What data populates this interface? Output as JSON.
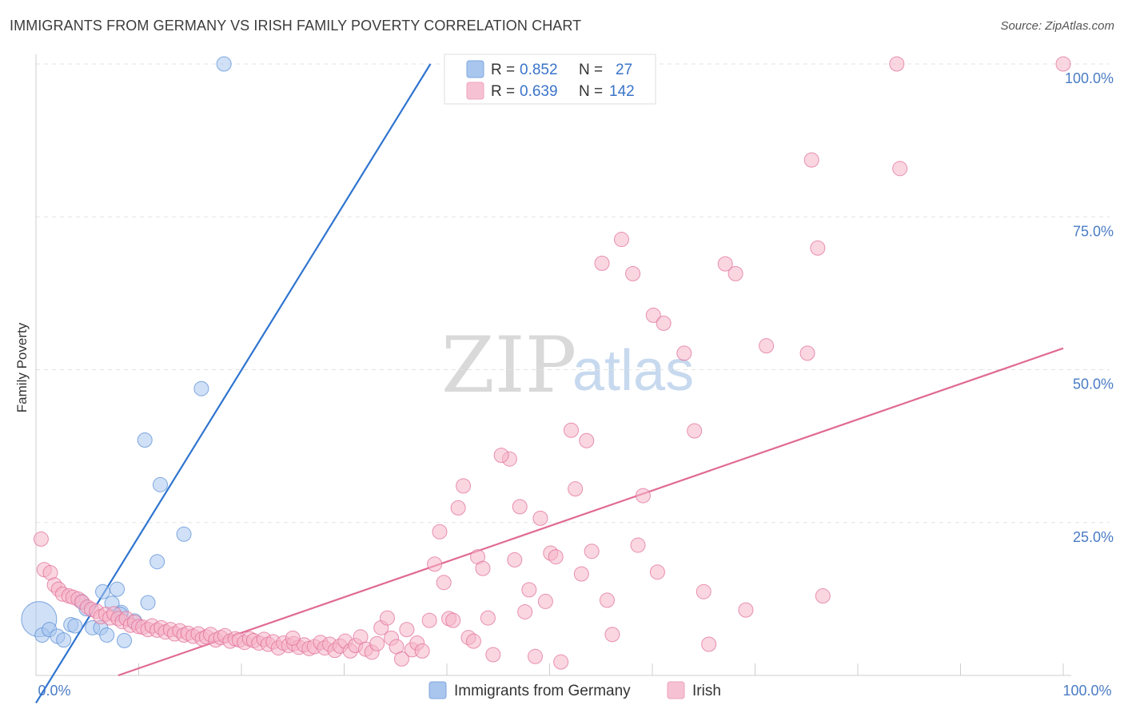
{
  "header": {
    "title": "IMMIGRANTS FROM GERMANY VS IRISH FAMILY POVERTY CORRELATION CHART",
    "source": "Source: ZipAtlas.com"
  },
  "watermark": {
    "zip": "ZIP",
    "atlas": "atlas"
  },
  "legend": {
    "rows": [
      {
        "r_label": "R =",
        "r_value": "0.852",
        "n_label": "N =",
        "n_value": "27",
        "color": "#a9c6ef"
      },
      {
        "r_label": "R =",
        "r_value": "0.639",
        "n_label": "N =",
        "n_value": "142",
        "color": "#f6b5c9"
      }
    ]
  },
  "bottom_legend": [
    {
      "label": "Immigrants from Germany",
      "color": "#a9c6ef"
    },
    {
      "label": "Irish",
      "color": "#f6b5c9"
    }
  ],
  "chart_data": {
    "type": "scatter",
    "ylabel": "Family Poverty",
    "xlim": [
      0,
      100
    ],
    "ylim": [
      0,
      100
    ],
    "x_tick_labels": [
      "0.0%",
      "100.0%"
    ],
    "y_tick_labels": [
      {
        "value": 100,
        "label": "100.0%"
      },
      {
        "value": 75,
        "label": "75.0%"
      },
      {
        "value": 50,
        "label": "50.0%"
      },
      {
        "value": 25,
        "label": "25.0%"
      }
    ],
    "grid": true,
    "series": [
      {
        "name": "Immigrants from Germany",
        "color": "#5b8fd6",
        "fill": "#a9c6ef",
        "points": [
          [
            0.3,
            9.2,
            22
          ],
          [
            0.6,
            6.6,
            9
          ],
          [
            1.3,
            7.5,
            9
          ],
          [
            2.1,
            6.4,
            9
          ],
          [
            2.7,
            5.8,
            9
          ],
          [
            3.4,
            8.3,
            9
          ],
          [
            3.8,
            8.1,
            9
          ],
          [
            4.4,
            12.1,
            9
          ],
          [
            4.9,
            10.9,
            9
          ],
          [
            5.5,
            7.8,
            9
          ],
          [
            6.3,
            7.8,
            9
          ],
          [
            6.5,
            13.7,
            9
          ],
          [
            6.9,
            6.6,
            9
          ],
          [
            7.4,
            11.8,
            9
          ],
          [
            7.9,
            14.1,
            9
          ],
          [
            8.3,
            10.3,
            9
          ],
          [
            8.6,
            5.7,
            9
          ],
          [
            9.6,
            8.9,
            9
          ],
          [
            10.6,
            38.5,
            9
          ],
          [
            11.8,
            18.6,
            9
          ],
          [
            12.1,
            31.2,
            9
          ],
          [
            10.9,
            11.9,
            9
          ],
          [
            14.4,
            23.1,
            9
          ],
          [
            16.1,
            46.9,
            9
          ],
          [
            18.3,
            100,
            9
          ],
          [
            40.5,
            100,
            9
          ],
          [
            8.2,
            10.0,
            9
          ]
        ],
        "trend": {
          "x0": 0,
          "y0": -4.5,
          "x1": 38.4,
          "y1": 100
        }
      },
      {
        "name": "Irish",
        "color": "#e0709a",
        "fill": "#f6b5c9",
        "points": [
          [
            0.5,
            22.3
          ],
          [
            0.8,
            17.3
          ],
          [
            1.4,
            16.8
          ],
          [
            1.8,
            14.8
          ],
          [
            2.2,
            14.1
          ],
          [
            2.6,
            13.3
          ],
          [
            3.2,
            13.0
          ],
          [
            3.6,
            12.8
          ],
          [
            4.1,
            12.5
          ],
          [
            4.5,
            12.0
          ],
          [
            5.0,
            11.2
          ],
          [
            5.4,
            10.8
          ],
          [
            5.9,
            10.5
          ],
          [
            6.3,
            9.6
          ],
          [
            6.8,
            10.0
          ],
          [
            7.2,
            9.4
          ],
          [
            7.6,
            10.1
          ],
          [
            8.0,
            9.3
          ],
          [
            8.4,
            8.8
          ],
          [
            8.8,
            9.3
          ],
          [
            9.2,
            8.2
          ],
          [
            9.6,
            8.7
          ],
          [
            10.0,
            8.0
          ],
          [
            10.4,
            7.9
          ],
          [
            10.9,
            7.5
          ],
          [
            11.3,
            8.1
          ],
          [
            11.8,
            7.4
          ],
          [
            12.2,
            7.8
          ],
          [
            12.6,
            7.1
          ],
          [
            13.1,
            7.5
          ],
          [
            13.5,
            6.8
          ],
          [
            14.0,
            7.3
          ],
          [
            14.4,
            6.6
          ],
          [
            14.8,
            6.9
          ],
          [
            15.3,
            6.4
          ],
          [
            15.8,
            6.8
          ],
          [
            16.2,
            6.0
          ],
          [
            16.6,
            6.3
          ],
          [
            17.0,
            6.7
          ],
          [
            17.5,
            5.8
          ],
          [
            18.0,
            6.2
          ],
          [
            18.4,
            6.5
          ],
          [
            18.9,
            5.6
          ],
          [
            19.4,
            6.0
          ],
          [
            19.8,
            5.8
          ],
          [
            20.3,
            5.4
          ],
          [
            20.8,
            6.0
          ],
          [
            21.2,
            5.7
          ],
          [
            21.7,
            5.3
          ],
          [
            22.2,
            5.9
          ],
          [
            22.6,
            5.1
          ],
          [
            23.1,
            5.5
          ],
          [
            23.6,
            4.5
          ],
          [
            24.1,
            5.3
          ],
          [
            24.6,
            4.9
          ],
          [
            25.1,
            5.2
          ],
          [
            25.6,
            4.6
          ],
          [
            26.1,
            5.0
          ],
          [
            26.6,
            4.4
          ],
          [
            27.1,
            4.7
          ],
          [
            27.7,
            5.4
          ],
          [
            28.1,
            4.5
          ],
          [
            28.6,
            5.1
          ],
          [
            29.1,
            4.1
          ],
          [
            29.6,
            4.8
          ],
          [
            30.1,
            5.6
          ],
          [
            30.6,
            4.0
          ],
          [
            31.1,
            4.9
          ],
          [
            31.6,
            6.3
          ],
          [
            32.1,
            4.3
          ],
          [
            32.7,
            3.8
          ],
          [
            33.2,
            5.2
          ],
          [
            33.6,
            7.8
          ],
          [
            34.2,
            9.4
          ],
          [
            34.6,
            6.1
          ],
          [
            35.1,
            4.7
          ],
          [
            35.6,
            2.7
          ],
          [
            36.1,
            7.5
          ],
          [
            36.6,
            4.2
          ],
          [
            37.1,
            5.3
          ],
          [
            37.6,
            4.0
          ],
          [
            38.3,
            9.0
          ],
          [
            38.8,
            18.2
          ],
          [
            39.3,
            23.5
          ],
          [
            39.7,
            15.2
          ],
          [
            40.2,
            9.3
          ],
          [
            40.6,
            9.0
          ],
          [
            41.1,
            27.4
          ],
          [
            41.6,
            31.0
          ],
          [
            42.1,
            6.2
          ],
          [
            42.6,
            5.6
          ],
          [
            43.0,
            19.4
          ],
          [
            43.5,
            17.5
          ],
          [
            44.0,
            9.4
          ],
          [
            44.5,
            3.4
          ],
          [
            46.1,
            35.4
          ],
          [
            46.6,
            18.9
          ],
          [
            47.1,
            27.6
          ],
          [
            47.6,
            10.4
          ],
          [
            48.0,
            14.0
          ],
          [
            48.6,
            3.1
          ],
          [
            49.1,
            25.7
          ],
          [
            49.6,
            12.1
          ],
          [
            50.1,
            20.0
          ],
          [
            50.6,
            19.4
          ],
          [
            51.1,
            2.2
          ],
          [
            52.1,
            40.1
          ],
          [
            52.5,
            30.5
          ],
          [
            53.1,
            16.6
          ],
          [
            53.6,
            38.4
          ],
          [
            54.1,
            20.3
          ],
          [
            55.1,
            67.4
          ],
          [
            55.6,
            12.3
          ],
          [
            56.1,
            6.7
          ],
          [
            58.1,
            65.7
          ],
          [
            58.6,
            21.3
          ],
          [
            59.1,
            29.4
          ],
          [
            60.1,
            58.9
          ],
          [
            60.5,
            16.9
          ],
          [
            61.1,
            57.6
          ],
          [
            63.1,
            52.7
          ],
          [
            64.1,
            40.0
          ],
          [
            65.0,
            13.7
          ],
          [
            65.5,
            5.1
          ],
          [
            67.1,
            67.3
          ],
          [
            68.1,
            65.7
          ],
          [
            69.1,
            10.7
          ],
          [
            71.1,
            53.9
          ],
          [
            75.1,
            52.7
          ],
          [
            76.1,
            69.9
          ],
          [
            76.6,
            13.0
          ],
          [
            75.5,
            84.3
          ],
          [
            84.1,
            82.9
          ],
          [
            83.8,
            100
          ],
          [
            100,
            100
          ],
          [
            45.3,
            36.0
          ],
          [
            57.0,
            71.3
          ],
          [
            25.0,
            6.1
          ]
        ],
        "trend": {
          "x0": 8.0,
          "y0": 0,
          "x1": 100,
          "y1": 53.5
        }
      }
    ]
  }
}
